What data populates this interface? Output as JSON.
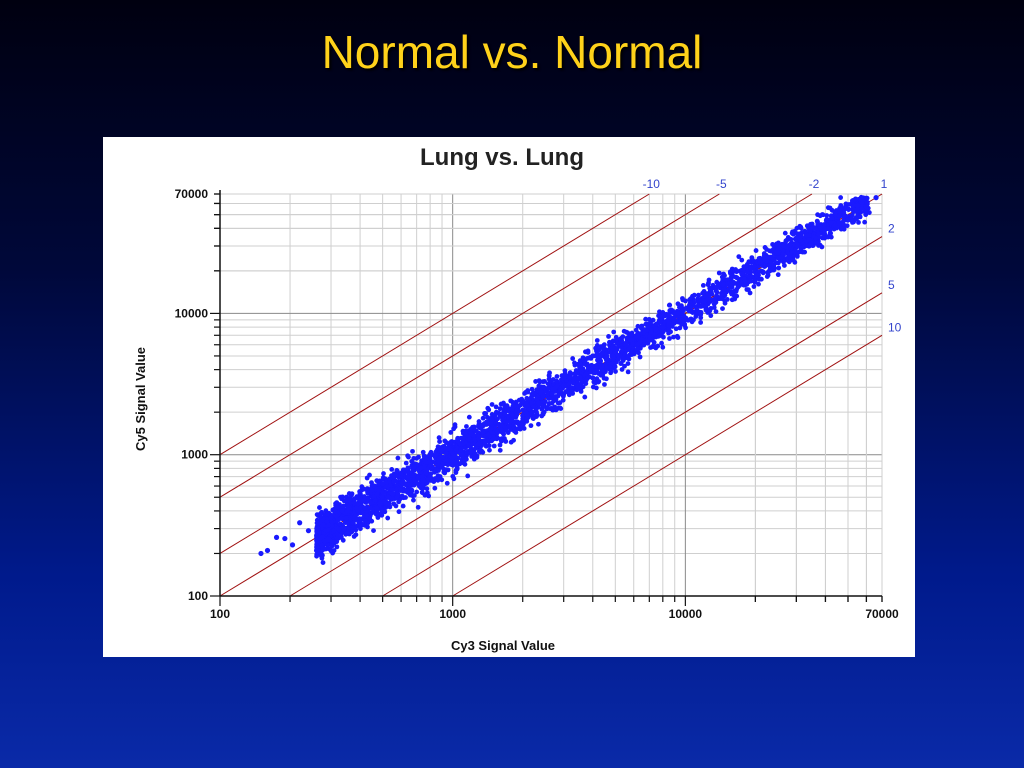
{
  "slide": {
    "title": "Normal vs. Normal"
  },
  "chart_data": {
    "type": "scatter",
    "title": "Lung vs. Lung",
    "xlabel": "Cy3 Signal Value",
    "ylabel": "Cy5 Signal Value",
    "xscale": "log",
    "yscale": "log",
    "xlim": [
      100,
      70000
    ],
    "ylim": [
      100,
      70000
    ],
    "x_ticks": [
      100,
      1000,
      10000,
      70000
    ],
    "y_ticks": [
      100,
      1000,
      10000,
      70000
    ],
    "x_tick_labels": [
      "100",
      "1000",
      "10000",
      "70000"
    ],
    "y_tick_labels": [
      "100",
      "1000",
      "10000",
      "70000"
    ],
    "grid": true,
    "point_color": "#1a1aff",
    "reference_line_color": "#a01010",
    "reference_lines": [
      {
        "label": "-10",
        "ratio": 10
      },
      {
        "label": "-5",
        "ratio": 5
      },
      {
        "label": "-2",
        "ratio": 2
      },
      {
        "label": "1",
        "ratio": 1
      },
      {
        "label": "2",
        "ratio": 0.5
      },
      {
        "label": "5",
        "ratio": 0.2
      },
      {
        "label": "10",
        "ratio": 0.1
      }
    ],
    "points": [
      [
        150,
        200
      ],
      [
        160,
        210
      ],
      [
        175,
        260
      ],
      [
        190,
        255
      ],
      [
        205,
        230
      ],
      [
        220,
        330
      ],
      [
        240,
        290
      ],
      [
        260,
        210
      ],
      [
        270,
        380
      ],
      [
        290,
        250
      ],
      [
        300,
        360
      ],
      [
        320,
        430
      ],
      [
        340,
        300
      ],
      [
        360,
        480
      ],
      [
        380,
        360
      ],
      [
        400,
        520
      ],
      [
        420,
        420
      ],
      [
        450,
        560
      ],
      [
        470,
        380
      ],
      [
        500,
        620
      ],
      [
        530,
        500
      ],
      [
        560,
        700
      ],
      [
        600,
        560
      ],
      [
        640,
        760
      ],
      [
        680,
        820
      ],
      [
        720,
        600
      ],
      [
        760,
        900
      ],
      [
        800,
        700
      ],
      [
        850,
        1000
      ],
      [
        900,
        820
      ],
      [
        950,
        1100
      ],
      [
        1000,
        950
      ],
      [
        1050,
        1250
      ],
      [
        1100,
        1000
      ],
      [
        1200,
        1400
      ],
      [
        1300,
        1200
      ],
      [
        1400,
        1700
      ],
      [
        1500,
        1300
      ],
      [
        1600,
        1900
      ],
      [
        1700,
        1500
      ],
      [
        1800,
        2100
      ],
      [
        1900,
        1700
      ],
      [
        2000,
        2400
      ],
      [
        2200,
        2000
      ],
      [
        2400,
        2800
      ],
      [
        2600,
        2300
      ],
      [
        2800,
        3300
      ],
      [
        3000,
        2700
      ],
      [
        3200,
        3800
      ],
      [
        3500,
        3100
      ],
      [
        3800,
        4300
      ],
      [
        4000,
        3500
      ],
      [
        4300,
        5000
      ],
      [
        4600,
        4100
      ],
      [
        5000,
        5600
      ],
      [
        5400,
        4800
      ],
      [
        5800,
        6500
      ],
      [
        6200,
        5500
      ],
      [
        6700,
        7600
      ],
      [
        7200,
        6500
      ],
      [
        7800,
        8700
      ],
      [
        8500,
        7500
      ],
      [
        9000,
        10000
      ],
      [
        9800,
        8800
      ],
      [
        10500,
        11800
      ],
      [
        11500,
        10200
      ],
      [
        12500,
        13500
      ],
      [
        13500,
        12000
      ],
      [
        14500,
        16000
      ],
      [
        16000,
        14000
      ],
      [
        17500,
        19000
      ],
      [
        19000,
        17000
      ],
      [
        21000,
        23000
      ],
      [
        23000,
        20000
      ],
      [
        25000,
        28000
      ],
      [
        28000,
        25000
      ],
      [
        31000,
        34000
      ],
      [
        34000,
        30000
      ],
      [
        38000,
        41000
      ],
      [
        42000,
        37000
      ],
      [
        46000,
        49000
      ],
      [
        50000,
        46000
      ],
      [
        55000,
        58000
      ],
      [
        60000,
        57000
      ],
      [
        66000,
        66000
      ],
      [
        48000,
        42000
      ],
      [
        36000,
        40000
      ],
      [
        44000,
        52000
      ],
      [
        29000,
        24000
      ],
      [
        52000,
        60000
      ]
    ]
  }
}
